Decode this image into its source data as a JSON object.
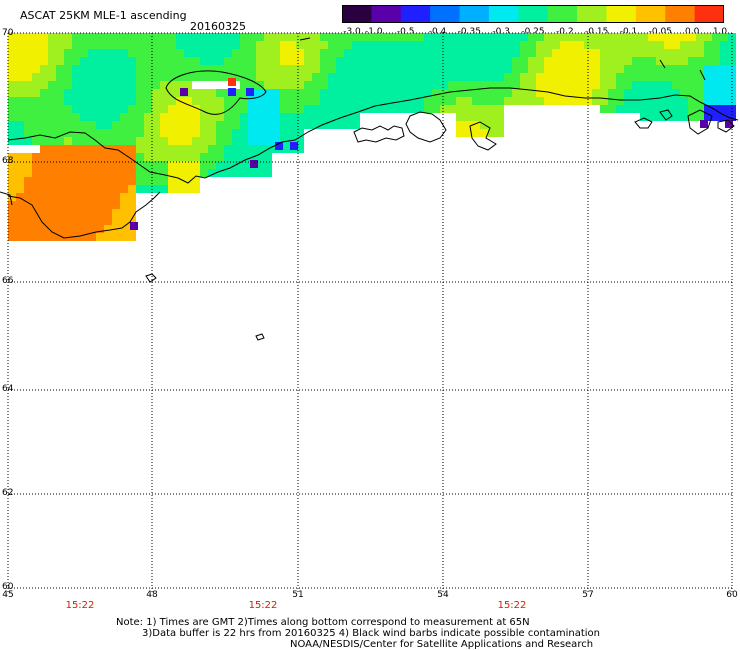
{
  "header": {
    "title": "ASCAT 25KM MLE-1 ascending",
    "date": "20160325"
  },
  "colorbar": {
    "tick_labels": [
      "-3.0",
      "-1.0",
      "-0.5",
      "-0.4",
      "-0.35",
      "-0.3",
      "-0.25",
      "-0.2",
      "-0.15",
      "-0.1",
      "-0.05",
      "0.0",
      "1.0"
    ],
    "colors": [
      "#2a0040",
      "#5a00a8",
      "#2020ff",
      "#0070ff",
      "#00b0ff",
      "#00e8f0",
      "#00f0a0",
      "#40f040",
      "#a0f020",
      "#f0f000",
      "#ffc000",
      "#ff8000",
      "#ff3010"
    ]
  },
  "map": {
    "lat_labels": [
      "70",
      "68",
      "66",
      "64",
      "62",
      "60"
    ],
    "lon_labels": [
      "45",
      "48",
      "51",
      "54",
      "57",
      "60"
    ],
    "time_labels": [
      "15:22",
      "15:22",
      "15:22"
    ]
  },
  "footer": {
    "note_line1": "Note: 1) Times are GMT 2)Times along bottom correspond to measurement at 65N",
    "note_line2": "3)Data buffer is 22 hrs from 20160325 4) Black wind barbs indicate possible contamination",
    "note_line3": "NOAA/NESDIS/Center for Satellite Applications and Research"
  }
}
